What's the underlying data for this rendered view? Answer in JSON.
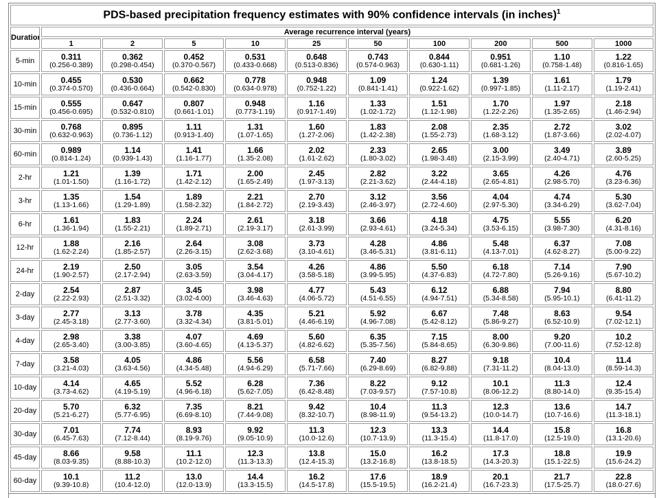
{
  "title": "PDS-based precipitation frequency estimates with 90% confidence intervals (in inches)",
  "title_footnote": "1",
  "duration_header": "Duration",
  "recurrence_header": "Average recurrence interval (years)",
  "columns": [
    "1",
    "2",
    "5",
    "10",
    "25",
    "50",
    "100",
    "200",
    "500",
    "1000"
  ],
  "rows": [
    {
      "duration": "5-min",
      "cells": [
        [
          "0.311",
          "(0.256-0.389)"
        ],
        [
          "0.362",
          "(0.298-0.454)"
        ],
        [
          "0.452",
          "(0.370-0.567)"
        ],
        [
          "0.531",
          "(0.433-0.668)"
        ],
        [
          "0.648",
          "(0.513-0.836)"
        ],
        [
          "0.743",
          "(0.574-0.963)"
        ],
        [
          "0.844",
          "(0.630-1.11)"
        ],
        [
          "0.951",
          "(0.681-1.26)"
        ],
        [
          "1.10",
          "(0.758-1.48)"
        ],
        [
          "1.22",
          "(0.816-1.65)"
        ]
      ]
    },
    {
      "duration": "10-min",
      "cells": [
        [
          "0.455",
          "(0.374-0.570)"
        ],
        [
          "0.530",
          "(0.436-0.664)"
        ],
        [
          "0.662",
          "(0.542-0.830)"
        ],
        [
          "0.778",
          "(0.634-0.978)"
        ],
        [
          "0.948",
          "(0.752-1.22)"
        ],
        [
          "1.09",
          "(0.841-1.41)"
        ],
        [
          "1.24",
          "(0.922-1.62)"
        ],
        [
          "1.39",
          "(0.997-1.85)"
        ],
        [
          "1.61",
          "(1.11-2.17)"
        ],
        [
          "1.79",
          "(1.19-2.41)"
        ]
      ]
    },
    {
      "duration": "15-min",
      "cells": [
        [
          "0.555",
          "(0.456-0.695)"
        ],
        [
          "0.647",
          "(0.532-0.810)"
        ],
        [
          "0.807",
          "(0.661-1.01)"
        ],
        [
          "0.948",
          "(0.773-1.19)"
        ],
        [
          "1.16",
          "(0.917-1.49)"
        ],
        [
          "1.33",
          "(1.02-1.72)"
        ],
        [
          "1.51",
          "(1.12-1.98)"
        ],
        [
          "1.70",
          "(1.22-2.26)"
        ],
        [
          "1.97",
          "(1.35-2.65)"
        ],
        [
          "2.18",
          "(1.46-2.94)"
        ]
      ]
    },
    {
      "duration": "30-min",
      "cells": [
        [
          "0.768",
          "(0.632-0.963)"
        ],
        [
          "0.895",
          "(0.736-1.12)"
        ],
        [
          "1.11",
          "(0.913-1.40)"
        ],
        [
          "1.31",
          "(1.07-1.65)"
        ],
        [
          "1.60",
          "(1.27-2.06)"
        ],
        [
          "1.83",
          "(1.42-2.38)"
        ],
        [
          "2.08",
          "(1.55-2.73)"
        ],
        [
          "2.35",
          "(1.68-3.12)"
        ],
        [
          "2.72",
          "(1.87-3.66)"
        ],
        [
          "3.02",
          "(2.02-4.07)"
        ]
      ]
    },
    {
      "duration": "60-min",
      "cells": [
        [
          "0.989",
          "(0.814-1.24)"
        ],
        [
          "1.14",
          "(0.939-1.43)"
        ],
        [
          "1.41",
          "(1.16-1.77)"
        ],
        [
          "1.66",
          "(1.35-2.08)"
        ],
        [
          "2.02",
          "(1.61-2.62)"
        ],
        [
          "2.33",
          "(1.80-3.02)"
        ],
        [
          "2.65",
          "(1.98-3.48)"
        ],
        [
          "3.00",
          "(2.15-3.99)"
        ],
        [
          "3.49",
          "(2.40-4.71)"
        ],
        [
          "3.89",
          "(2.60-5.25)"
        ]
      ]
    },
    {
      "duration": "2-hr",
      "cells": [
        [
          "1.21",
          "(1.01-1.50)"
        ],
        [
          "1.39",
          "(1.16-1.72)"
        ],
        [
          "1.71",
          "(1.42-2.12)"
        ],
        [
          "2.00",
          "(1.65-2.49)"
        ],
        [
          "2.45",
          "(1.97-3.13)"
        ],
        [
          "2.82",
          "(2.21-3.62)"
        ],
        [
          "3.22",
          "(2.44-4.18)"
        ],
        [
          "3.65",
          "(2.65-4.81)"
        ],
        [
          "4.26",
          "(2.98-5.70)"
        ],
        [
          "4.76",
          "(3.23-6.36)"
        ]
      ]
    },
    {
      "duration": "3-hr",
      "cells": [
        [
          "1.35",
          "(1.13-1.66)"
        ],
        [
          "1.54",
          "(1.29-1.89)"
        ],
        [
          "1.89",
          "(1.58-2.32)"
        ],
        [
          "2.21",
          "(1.84-2.72)"
        ],
        [
          "2.70",
          "(2.19-3.43)"
        ],
        [
          "3.12",
          "(2.46-3.97)"
        ],
        [
          "3.56",
          "(2.72-4.60)"
        ],
        [
          "4.04",
          "(2.97-5.30)"
        ],
        [
          "4.74",
          "(3.34-6.29)"
        ],
        [
          "5.30",
          "(3.62-7.04)"
        ]
      ]
    },
    {
      "duration": "6-hr",
      "cells": [
        [
          "1.61",
          "(1.36-1.94)"
        ],
        [
          "1.83",
          "(1.55-2.21)"
        ],
        [
          "2.24",
          "(1.89-2.71)"
        ],
        [
          "2.61",
          "(2.19-3.17)"
        ],
        [
          "3.18",
          "(2.61-3.99)"
        ],
        [
          "3.66",
          "(2.93-4.61)"
        ],
        [
          "4.18",
          "(3.24-5.34)"
        ],
        [
          "4.75",
          "(3.53-6.15)"
        ],
        [
          "5.55",
          "(3.98-7.30)"
        ],
        [
          "6.20",
          "(4.31-8.16)"
        ]
      ]
    },
    {
      "duration": "12-hr",
      "cells": [
        [
          "1.88",
          "(1.62-2.24)"
        ],
        [
          "2.16",
          "(1.85-2.57)"
        ],
        [
          "2.64",
          "(2.26-3.15)"
        ],
        [
          "3.08",
          "(2.62-3.68)"
        ],
        [
          "3.73",
          "(3.10-4.61)"
        ],
        [
          "4.28",
          "(3.46-5.31)"
        ],
        [
          "4.86",
          "(3.81-6.11)"
        ],
        [
          "5.48",
          "(4.13-7.01)"
        ],
        [
          "6.37",
          "(4.62-8.27)"
        ],
        [
          "7.08",
          "(5.00-9.22)"
        ]
      ]
    },
    {
      "duration": "24-hr",
      "cells": [
        [
          "2.19",
          "(1.90-2.57)"
        ],
        [
          "2.50",
          "(2.17-2.94)"
        ],
        [
          "3.05",
          "(2.63-3.59)"
        ],
        [
          "3.54",
          "(3.04-4.17)"
        ],
        [
          "4.26",
          "(3.58-5.18)"
        ],
        [
          "4.86",
          "(3.99-5.95)"
        ],
        [
          "5.50",
          "(4.37-6.83)"
        ],
        [
          "6.18",
          "(4.72-7.80)"
        ],
        [
          "7.14",
          "(5.26-9.16)"
        ],
        [
          "7.90",
          "(5.67-10.2)"
        ]
      ]
    },
    {
      "duration": "2-day",
      "cells": [
        [
          "2.54",
          "(2.22-2.93)"
        ],
        [
          "2.87",
          "(2.51-3.32)"
        ],
        [
          "3.45",
          "(3.02-4.00)"
        ],
        [
          "3.98",
          "(3.46-4.63)"
        ],
        [
          "4.77",
          "(4.06-5.72)"
        ],
        [
          "5.43",
          "(4.51-6.55)"
        ],
        [
          "6.12",
          "(4.94-7.51)"
        ],
        [
          "6.88",
          "(5.34-8.58)"
        ],
        [
          "7.94",
          "(5.95-10.1)"
        ],
        [
          "8.80",
          "(6.41-11.2)"
        ]
      ]
    },
    {
      "duration": "3-day",
      "cells": [
        [
          "2.77",
          "(2.45-3.18)"
        ],
        [
          "3.13",
          "(2.77-3.60)"
        ],
        [
          "3.78",
          "(3.32-4.34)"
        ],
        [
          "4.35",
          "(3.81-5.01)"
        ],
        [
          "5.21",
          "(4.46-6.19)"
        ],
        [
          "5.92",
          "(4.96-7.08)"
        ],
        [
          "6.67",
          "(5.42-8.12)"
        ],
        [
          "7.48",
          "(5.86-9.27)"
        ],
        [
          "8.63",
          "(6.52-10.9)"
        ],
        [
          "9.54",
          "(7.02-12.1)"
        ]
      ]
    },
    {
      "duration": "4-day",
      "cells": [
        [
          "2.98",
          "(2.65-3.40)"
        ],
        [
          "3.38",
          "(3.00-3.85)"
        ],
        [
          "4.07",
          "(3.60-4.65)"
        ],
        [
          "4.69",
          "(4.13-5.37)"
        ],
        [
          "5.60",
          "(4.82-6.62)"
        ],
        [
          "6.35",
          "(5.35-7.56)"
        ],
        [
          "7.15",
          "(5.84-8.65)"
        ],
        [
          "8.00",
          "(6.30-9.86)"
        ],
        [
          "9.20",
          "(7.00-11.6)"
        ],
        [
          "10.2",
          "(7.52-12.8)"
        ]
      ]
    },
    {
      "duration": "7-day",
      "cells": [
        [
          "3.58",
          "(3.21-4.03)"
        ],
        [
          "4.05",
          "(3.63-4.56)"
        ],
        [
          "4.86",
          "(4.34-5.48)"
        ],
        [
          "5.56",
          "(4.94-6.29)"
        ],
        [
          "6.58",
          "(5.71-7.66)"
        ],
        [
          "7.40",
          "(6.29-8.69)"
        ],
        [
          "8.27",
          "(6.82-9.88)"
        ],
        [
          "9.18",
          "(7.31-11.2)"
        ],
        [
          "10.4",
          "(8.04-13.0)"
        ],
        [
          "11.4",
          "(8.59-14.3)"
        ]
      ]
    },
    {
      "duration": "10-day",
      "cells": [
        [
          "4.14",
          "(3.73-4.62)"
        ],
        [
          "4.65",
          "(4.19-5.19)"
        ],
        [
          "5.52",
          "(4.96-6.18)"
        ],
        [
          "6.28",
          "(5.62-7.05)"
        ],
        [
          "7.36",
          "(6.42-8.48)"
        ],
        [
          "8.22",
          "(7.03-9.57)"
        ],
        [
          "9.12",
          "(7.57-10.8)"
        ],
        [
          "10.1",
          "(8.06-12.2)"
        ],
        [
          "11.3",
          "(8.80-14.0)"
        ],
        [
          "12.4",
          "(9.35-15.4)"
        ]
      ]
    },
    {
      "duration": "20-day",
      "cells": [
        [
          "5.70",
          "(5.21-6.27)"
        ],
        [
          "6.32",
          "(5.77-6.95)"
        ],
        [
          "7.35",
          "(6.69-8.10)"
        ],
        [
          "8.21",
          "(7.44-9.08)"
        ],
        [
          "9.42",
          "(8.32-10.7)"
        ],
        [
          "10.4",
          "(8.98-11.9)"
        ],
        [
          "11.3",
          "(9.54-13.2)"
        ],
        [
          "12.3",
          "(10.0-14.7)"
        ],
        [
          "13.6",
          "(10.7-16.6)"
        ],
        [
          "14.7",
          "(11.3-18.1)"
        ]
      ]
    },
    {
      "duration": "30-day",
      "cells": [
        [
          "7.01",
          "(6.45-7.63)"
        ],
        [
          "7.74",
          "(7.12-8.44)"
        ],
        [
          "8.93",
          "(8.19-9.76)"
        ],
        [
          "9.92",
          "(9.05-10.9)"
        ],
        [
          "11.3",
          "(10.0-12.6)"
        ],
        [
          "12.3",
          "(10.7-13.9)"
        ],
        [
          "13.3",
          "(11.3-15.4)"
        ],
        [
          "14.4",
          "(11.8-17.0)"
        ],
        [
          "15.8",
          "(12.5-19.0)"
        ],
        [
          "16.8",
          "(13.1-20.6)"
        ]
      ]
    },
    {
      "duration": "45-day",
      "cells": [
        [
          "8.66",
          "(8.03-9.35)"
        ],
        [
          "9.58",
          "(8.88-10.3)"
        ],
        [
          "11.1",
          "(10.2-12.0)"
        ],
        [
          "12.3",
          "(11.3-13.3)"
        ],
        [
          "13.8",
          "(12.4-15.3)"
        ],
        [
          "15.0",
          "(13.2-16.8)"
        ],
        [
          "16.2",
          "(13.8-18.5)"
        ],
        [
          "17.3",
          "(14.3-20.3)"
        ],
        [
          "18.8",
          "(15.1-22.5)"
        ],
        [
          "19.9",
          "(15.6-24.2)"
        ]
      ]
    },
    {
      "duration": "60-day",
      "cells": [
        [
          "10.1",
          "(9.39-10.8)"
        ],
        [
          "11.2",
          "(10.4-12.0)"
        ],
        [
          "13.0",
          "(12.0-13.9)"
        ],
        [
          "14.4",
          "(13.3-15.5)"
        ],
        [
          "16.2",
          "(14.5-17.8)"
        ],
        [
          "17.6",
          "(15.5-19.5)"
        ],
        [
          "18.9",
          "(16.2-21.4)"
        ],
        [
          "20.1",
          "(16.7-23.3)"
        ],
        [
          "21.7",
          "(17.5-25.7)"
        ],
        [
          "22.8",
          "(18.0-27.6)"
        ]
      ]
    }
  ]
}
